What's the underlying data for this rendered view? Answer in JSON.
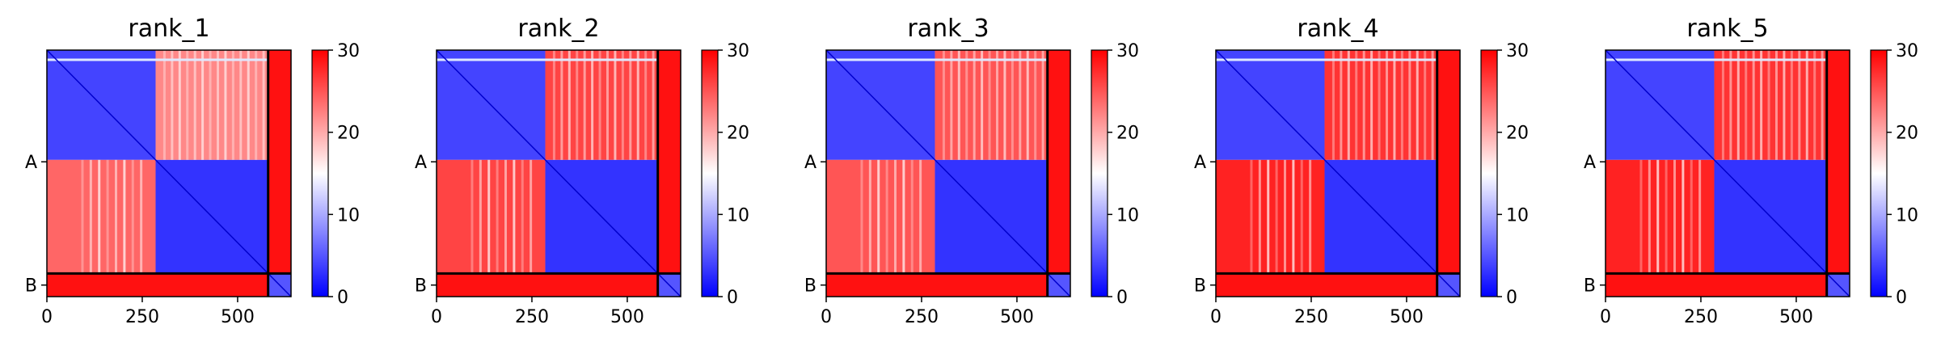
{
  "chart_data": [
    {
      "type": "heatmap",
      "title": "rank_1",
      "x_ticks": [
        0,
        250,
        500
      ],
      "y_tick_labels": [
        "A",
        "B"
      ],
      "chain_lengths": {
        "A": 580,
        "B": 60
      },
      "colorbar": {
        "min": 0,
        "max": 30,
        "ticks": [
          0,
          10,
          20,
          30
        ]
      },
      "colormap": [
        "#0000ff",
        "#ffffff",
        "#ff0000"
      ],
      "block_values": {
        "AA_first": 4,
        "A1A2": 22,
        "A2A1": 24,
        "AA_second": 3,
        "AB": 29,
        "BA": 29,
        "BB": 5
      }
    },
    {
      "type": "heatmap",
      "title": "rank_2",
      "x_ticks": [
        0,
        250,
        500
      ],
      "y_tick_labels": [
        "A",
        "B"
      ],
      "chain_lengths": {
        "A": 580,
        "B": 60
      },
      "colorbar": {
        "min": 0,
        "max": 30,
        "ticks": [
          0,
          10,
          20,
          30
        ]
      },
      "colormap": [
        "#0000ff",
        "#ffffff",
        "#ff0000"
      ],
      "block_values": {
        "AA_first": 4,
        "A1A2": 26,
        "A2A1": 26,
        "AA_second": 3,
        "AB": 29,
        "BA": 29,
        "BB": 5
      }
    },
    {
      "type": "heatmap",
      "title": "rank_3",
      "x_ticks": [
        0,
        250,
        500
      ],
      "y_tick_labels": [
        "A",
        "B"
      ],
      "chain_lengths": {
        "A": 580,
        "B": 60
      },
      "colorbar": {
        "min": 0,
        "max": 30,
        "ticks": [
          0,
          10,
          20,
          30
        ]
      },
      "colormap": [
        "#0000ff",
        "#ffffff",
        "#ff0000"
      ],
      "block_values": {
        "AA_first": 4,
        "A1A2": 25,
        "A2A1": 25,
        "AA_second": 3,
        "AB": 29,
        "BA": 29,
        "BB": 5
      }
    },
    {
      "type": "heatmap",
      "title": "rank_4",
      "x_ticks": [
        0,
        250,
        500
      ],
      "y_tick_labels": [
        "A",
        "B"
      ],
      "chain_lengths": {
        "A": 580,
        "B": 60
      },
      "colorbar": {
        "min": 0,
        "max": 30,
        "ticks": [
          0,
          10,
          20,
          30
        ]
      },
      "colormap": [
        "#0000ff",
        "#ffffff",
        "#ff0000"
      ],
      "block_values": {
        "AA_first": 4,
        "A1A2": 27,
        "A2A1": 28,
        "AA_second": 3,
        "AB": 29,
        "BA": 29,
        "BB": 5
      }
    },
    {
      "type": "heatmap",
      "title": "rank_5",
      "x_ticks": [
        0,
        250,
        500
      ],
      "y_tick_labels": [
        "A",
        "B"
      ],
      "chain_lengths": {
        "A": 580,
        "B": 60
      },
      "colorbar": {
        "min": 0,
        "max": 30,
        "ticks": [
          0,
          10,
          20,
          30
        ]
      },
      "colormap": [
        "#0000ff",
        "#ffffff",
        "#ff0000"
      ],
      "block_values": {
        "AA_first": 4,
        "A1A2": 27,
        "A2A1": 28,
        "AA_second": 3,
        "AB": 29,
        "BA": 29,
        "BB": 5
      }
    }
  ]
}
